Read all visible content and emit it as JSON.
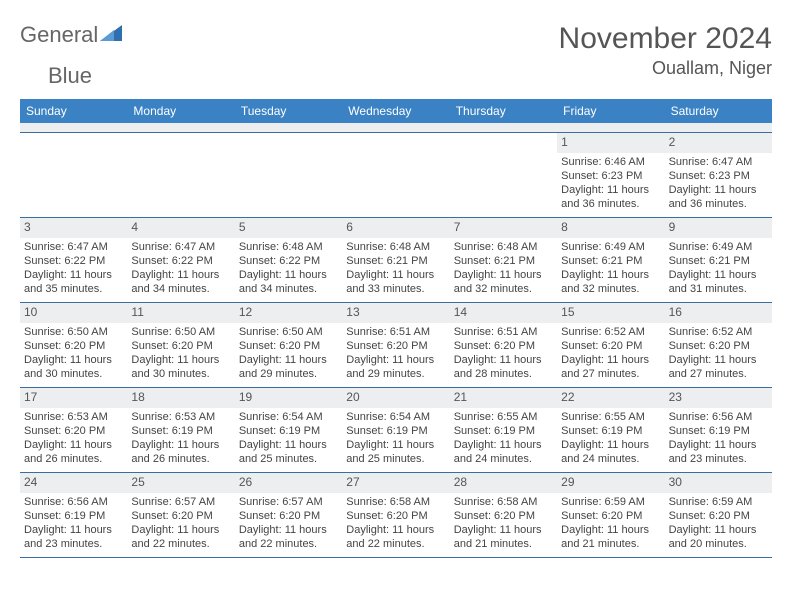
{
  "brand": {
    "word1": "General",
    "word2": "Blue"
  },
  "title": "November 2024",
  "location": "Ouallam, Niger",
  "colors": {
    "header_bg": "#3b82c4",
    "header_text": "#ffffff",
    "daynum_bg": "#eceef0",
    "grid_border": "#3b6ea0",
    "body_text": "#444444",
    "title_text": "#555555",
    "page_bg": "#ffffff"
  },
  "dow": [
    "Sunday",
    "Monday",
    "Tuesday",
    "Wednesday",
    "Thursday",
    "Friday",
    "Saturday"
  ],
  "weeks": [
    [
      null,
      null,
      null,
      null,
      null,
      {
        "n": "1",
        "sr": "6:46 AM",
        "ss": "6:23 PM",
        "dl": "11 hours and 36 minutes."
      },
      {
        "n": "2",
        "sr": "6:47 AM",
        "ss": "6:23 PM",
        "dl": "11 hours and 36 minutes."
      }
    ],
    [
      {
        "n": "3",
        "sr": "6:47 AM",
        "ss": "6:22 PM",
        "dl": "11 hours and 35 minutes."
      },
      {
        "n": "4",
        "sr": "6:47 AM",
        "ss": "6:22 PM",
        "dl": "11 hours and 34 minutes."
      },
      {
        "n": "5",
        "sr": "6:48 AM",
        "ss": "6:22 PM",
        "dl": "11 hours and 34 minutes."
      },
      {
        "n": "6",
        "sr": "6:48 AM",
        "ss": "6:21 PM",
        "dl": "11 hours and 33 minutes."
      },
      {
        "n": "7",
        "sr": "6:48 AM",
        "ss": "6:21 PM",
        "dl": "11 hours and 32 minutes."
      },
      {
        "n": "8",
        "sr": "6:49 AM",
        "ss": "6:21 PM",
        "dl": "11 hours and 32 minutes."
      },
      {
        "n": "9",
        "sr": "6:49 AM",
        "ss": "6:21 PM",
        "dl": "11 hours and 31 minutes."
      }
    ],
    [
      {
        "n": "10",
        "sr": "6:50 AM",
        "ss": "6:20 PM",
        "dl": "11 hours and 30 minutes."
      },
      {
        "n": "11",
        "sr": "6:50 AM",
        "ss": "6:20 PM",
        "dl": "11 hours and 30 minutes."
      },
      {
        "n": "12",
        "sr": "6:50 AM",
        "ss": "6:20 PM",
        "dl": "11 hours and 29 minutes."
      },
      {
        "n": "13",
        "sr": "6:51 AM",
        "ss": "6:20 PM",
        "dl": "11 hours and 29 minutes."
      },
      {
        "n": "14",
        "sr": "6:51 AM",
        "ss": "6:20 PM",
        "dl": "11 hours and 28 minutes."
      },
      {
        "n": "15",
        "sr": "6:52 AM",
        "ss": "6:20 PM",
        "dl": "11 hours and 27 minutes."
      },
      {
        "n": "16",
        "sr": "6:52 AM",
        "ss": "6:20 PM",
        "dl": "11 hours and 27 minutes."
      }
    ],
    [
      {
        "n": "17",
        "sr": "6:53 AM",
        "ss": "6:20 PM",
        "dl": "11 hours and 26 minutes."
      },
      {
        "n": "18",
        "sr": "6:53 AM",
        "ss": "6:19 PM",
        "dl": "11 hours and 26 minutes."
      },
      {
        "n": "19",
        "sr": "6:54 AM",
        "ss": "6:19 PM",
        "dl": "11 hours and 25 minutes."
      },
      {
        "n": "20",
        "sr": "6:54 AM",
        "ss": "6:19 PM",
        "dl": "11 hours and 25 minutes."
      },
      {
        "n": "21",
        "sr": "6:55 AM",
        "ss": "6:19 PM",
        "dl": "11 hours and 24 minutes."
      },
      {
        "n": "22",
        "sr": "6:55 AM",
        "ss": "6:19 PM",
        "dl": "11 hours and 24 minutes."
      },
      {
        "n": "23",
        "sr": "6:56 AM",
        "ss": "6:19 PM",
        "dl": "11 hours and 23 minutes."
      }
    ],
    [
      {
        "n": "24",
        "sr": "6:56 AM",
        "ss": "6:19 PM",
        "dl": "11 hours and 23 minutes."
      },
      {
        "n": "25",
        "sr": "6:57 AM",
        "ss": "6:20 PM",
        "dl": "11 hours and 22 minutes."
      },
      {
        "n": "26",
        "sr": "6:57 AM",
        "ss": "6:20 PM",
        "dl": "11 hours and 22 minutes."
      },
      {
        "n": "27",
        "sr": "6:58 AM",
        "ss": "6:20 PM",
        "dl": "11 hours and 22 minutes."
      },
      {
        "n": "28",
        "sr": "6:58 AM",
        "ss": "6:20 PM",
        "dl": "11 hours and 21 minutes."
      },
      {
        "n": "29",
        "sr": "6:59 AM",
        "ss": "6:20 PM",
        "dl": "11 hours and 21 minutes."
      },
      {
        "n": "30",
        "sr": "6:59 AM",
        "ss": "6:20 PM",
        "dl": "11 hours and 20 minutes."
      }
    ]
  ],
  "labels": {
    "sunrise": "Sunrise: ",
    "sunset": "Sunset: ",
    "daylight": "Daylight: "
  }
}
